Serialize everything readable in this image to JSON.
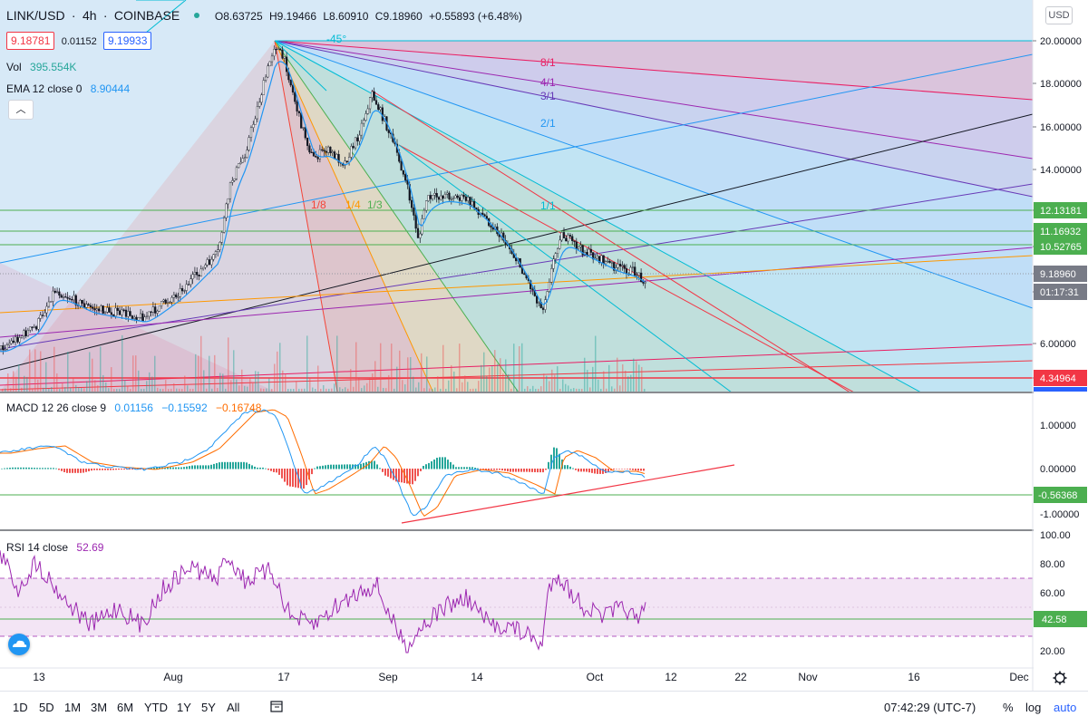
{
  "header": {
    "symbol": "LINK/USD",
    "interval": "4h",
    "exchange": "COINBASE",
    "open": "O8.63725",
    "high": "H9.19466",
    "low": "L8.60910",
    "close": "C9.18960",
    "change": "+0.55893 (+6.48%)",
    "bid": "9.18781",
    "spread": "0.01152",
    "ask": "9.19933",
    "vol_label": "Vol",
    "vol_value": "395.554K",
    "ema_label": "EMA 12 close 0",
    "ema_value": "8.90444"
  },
  "currency_button": "USD",
  "price_axis": {
    "ticks": [
      "20.00000",
      "18.00000",
      "16.00000",
      "14.00000",
      "12.13181",
      "11.16932",
      "10.52765",
      "9.18960",
      "01:17:31",
      "6.00000",
      "4.34964"
    ],
    "colors": {
      "level": "#4caf50",
      "price": "#787b86",
      "red": "#f23645"
    }
  },
  "gann_fan_labels": [
    "-45°",
    "8/1",
    "4/1",
    "3/1",
    "2/1",
    "1/1",
    "1/8",
    "1/4",
    "1/3"
  ],
  "time_axis": {
    "labels": [
      "13",
      "Aug",
      "17",
      "Sep",
      "14",
      "Oct",
      "12",
      "22",
      "Nov",
      "16",
      "Dec"
    ]
  },
  "macd": {
    "label": "MACD 12 26 close 9",
    "v1": "0.01156",
    "v2": "−0.15592",
    "v3": "−0.16748",
    "ticks": [
      "1.00000",
      "0.00000",
      "-0.56368",
      "-1.00000"
    ],
    "colors": {
      "macd": "#2196f3",
      "signal": "#ff6d00",
      "hist_up": "#26a69a",
      "hist_down": "#ef5350"
    }
  },
  "rsi": {
    "label": "RSI 14 close",
    "value": "52.69",
    "ticks": [
      "100.00",
      "80.00",
      "60.00",
      "42.58",
      "20.00"
    ],
    "colors": {
      "line": "#9c27b0",
      "band": "#f3e5f5"
    }
  },
  "bottom_toolbar": {
    "timeframes": [
      "1D",
      "5D",
      "1M",
      "3M",
      "6M",
      "YTD",
      "1Y",
      "5Y",
      "All"
    ],
    "clock": "07:42:29 (UTC-7)",
    "percent": "%",
    "log": "log",
    "auto": "auto"
  },
  "chart_data": {
    "type": "line",
    "title": "LINK/USD 4h COINBASE",
    "x": [
      "Jul 13",
      "Aug 1",
      "Aug 17",
      "Sep 1",
      "Sep 14",
      "Oct 1",
      "Oct 8"
    ],
    "series": [
      {
        "name": "Close",
        "values": [
          4.6,
          8.0,
          19.8,
          15.5,
          11.0,
          10.6,
          9.19
        ]
      }
    ],
    "ylim": [
      3.8,
      21.0
    ],
    "horizontal_levels": [
      12.13181,
      11.16932,
      10.52765,
      4.34964
    ],
    "macd_series": {
      "x": [
        "Jul 13",
        "Aug 1",
        "Aug 17",
        "Sep 1",
        "Sep 8",
        "Sep 14",
        "Oct 1",
        "Oct 8"
      ],
      "values": [
        0.3,
        0.1,
        1.3,
        0.4,
        -1.05,
        0.0,
        0.35,
        -0.16
      ]
    },
    "rsi_series": {
      "x": [
        "Jul 13",
        "Aug 1",
        "Aug 17",
        "Sep 1",
        "Sep 8",
        "Sep 20",
        "Sep 26",
        "Oct 8"
      ],
      "values": [
        80,
        55,
        75,
        70,
        25,
        45,
        22,
        52.69
      ]
    }
  }
}
